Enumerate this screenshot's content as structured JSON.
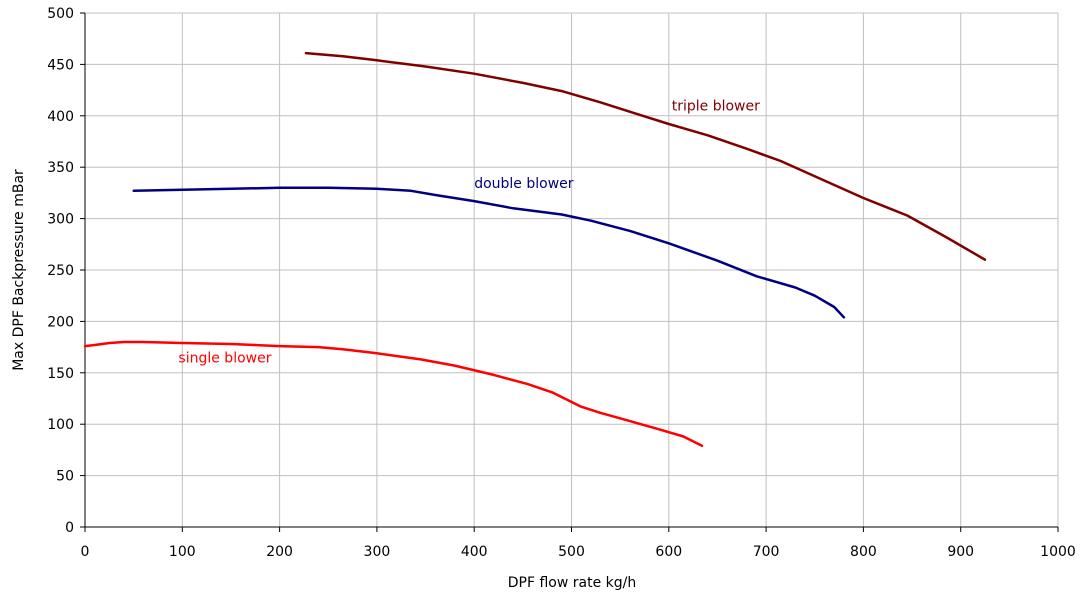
{
  "chart_data": {
    "type": "line",
    "title": "",
    "xlabel": "DPF flow rate kg/h",
    "ylabel": "Max DPF Backpressure mBar",
    "xlim": [
      0,
      1000
    ],
    "ylim": [
      0,
      500
    ],
    "xticks": [
      0,
      100,
      200,
      300,
      400,
      500,
      600,
      700,
      800,
      900,
      1000
    ],
    "yticks": [
      0,
      50,
      100,
      150,
      200,
      250,
      300,
      350,
      400,
      450,
      500
    ],
    "grid": true,
    "series": [
      {
        "name": "single blower",
        "color": "#ff0000",
        "label_at": [
          96,
          160
        ],
        "x": [
          0,
          10,
          25,
          40,
          60,
          100,
          150,
          200,
          240,
          265,
          300,
          345,
          380,
          420,
          455,
          480,
          495,
          510,
          530,
          560,
          590,
          615,
          634
        ],
        "y": [
          176,
          177,
          179,
          180,
          180,
          179,
          178,
          176,
          175,
          173,
          169,
          163,
          157,
          148,
          139,
          131,
          124,
          117,
          111,
          103,
          95,
          88,
          79
        ]
      },
      {
        "name": "double blower",
        "color": "#000080",
        "label_at": [
          400,
          330
        ],
        "x": [
          50,
          100,
          200,
          250,
          300,
          335,
          360,
          400,
          440,
          490,
          520,
          560,
          600,
          650,
          690,
          730,
          750,
          770,
          780
        ],
        "y": [
          327,
          328,
          330,
          330,
          329,
          327,
          323,
          317,
          310,
          304,
          298,
          288,
          276,
          259,
          244,
          233,
          225,
          214,
          204
        ]
      },
      {
        "name": "triple blower",
        "color": "#800000",
        "label_at": [
          603,
          405
        ],
        "x": [
          227,
          265,
          300,
          350,
          400,
          450,
          490,
          530,
          570,
          600,
          640,
          680,
          715,
          760,
          800,
          845,
          885,
          925
        ],
        "y": [
          461,
          458,
          454,
          448,
          441,
          432,
          424,
          413,
          401,
          392,
          381,
          368,
          356,
          337,
          320,
          303,
          282,
          260
        ]
      }
    ]
  }
}
